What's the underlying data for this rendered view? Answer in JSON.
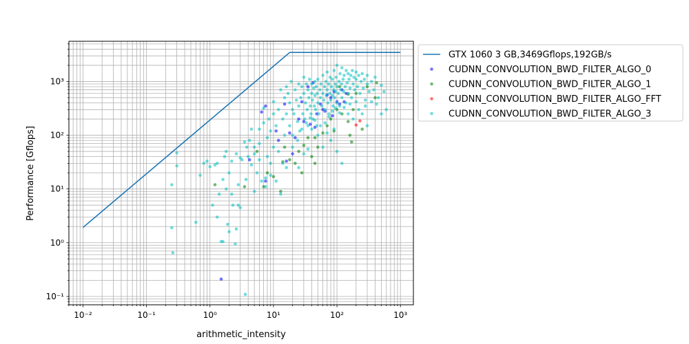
{
  "chart_data": {
    "type": "scatter",
    "title": "",
    "xlabel": "arithmetic_intensity",
    "ylabel": "Performance [Gflops]",
    "xscale": "log",
    "yscale": "log",
    "xlim": [
      0.006,
      1600
    ],
    "ylim": [
      0.07,
      5600
    ],
    "grid": true,
    "legend_position": "outside-right-top",
    "xticks": [
      {
        "value": 0.01,
        "label": "10⁻²"
      },
      {
        "value": 0.1,
        "label": "10⁻¹"
      },
      {
        "value": 1,
        "label": "10⁰"
      },
      {
        "value": 10,
        "label": "10¹"
      },
      {
        "value": 100,
        "label": "10²"
      },
      {
        "value": 1000,
        "label": "10³"
      }
    ],
    "yticks": [
      {
        "value": 0.1,
        "label": "10⁻¹"
      },
      {
        "value": 1,
        "label": "10⁰"
      },
      {
        "value": 10,
        "label": "10¹"
      },
      {
        "value": 100,
        "label": "10²"
      },
      {
        "value": 1000,
        "label": "10³"
      }
    ],
    "roofline": {
      "name": "GTX 1060 3 GB,3469Gflops,192GB/s",
      "color": "#1f77b4",
      "peak_gflops": 3469,
      "bandwidth_gbs": 192,
      "x": [
        0.01,
        18.07,
        1000
      ],
      "y": [
        1.92,
        3469,
        3469
      ]
    },
    "series": [
      {
        "name": "CUDNN_CONVOLUTION_BWD_FILTER_ALGO_0",
        "color": "#0000ff",
        "points": [
          [
            1.5,
            0.21
          ],
          [
            6.5,
            270
          ],
          [
            7.5,
            350
          ],
          [
            7.5,
            14
          ],
          [
            4.2,
            35
          ],
          [
            12,
            80
          ],
          [
            15,
            380
          ],
          [
            18,
            110
          ],
          [
            22,
            90
          ],
          [
            28,
            420
          ],
          [
            35,
            800
          ],
          [
            42,
            950
          ],
          [
            48,
            250
          ],
          [
            55,
            380
          ],
          [
            60,
            300
          ],
          [
            70,
            560
          ],
          [
            80,
            500
          ],
          [
            90,
            650
          ],
          [
            100,
            420
          ],
          [
            110,
            380
          ],
          [
            120,
            700
          ],
          [
            140,
            600
          ],
          [
            25,
            200
          ],
          [
            30,
            180
          ],
          [
            20,
            45
          ],
          [
            16,
            33
          ],
          [
            11,
            120
          ],
          [
            38,
            160
          ],
          [
            45,
            140
          ],
          [
            65,
            280
          ],
          [
            85,
            230
          ],
          [
            130,
            420
          ]
        ]
      },
      {
        "name": "CUDNN_CONVOLUTION_BWD_FILTER_ALGO_1",
        "color": "#008000",
        "points": [
          [
            1.2,
            12
          ],
          [
            3.5,
            11
          ],
          [
            5.5,
            50
          ],
          [
            7,
            11
          ],
          [
            8,
            20
          ],
          [
            10,
            17
          ],
          [
            13,
            9
          ],
          [
            15,
            60
          ],
          [
            18,
            35
          ],
          [
            22,
            30
          ],
          [
            25,
            50
          ],
          [
            28,
            20
          ],
          [
            30,
            65
          ],
          [
            35,
            90
          ],
          [
            40,
            40
          ],
          [
            45,
            90
          ],
          [
            50,
            60
          ],
          [
            60,
            110
          ],
          [
            70,
            150
          ],
          [
            80,
            200
          ],
          [
            90,
            120
          ],
          [
            100,
            300
          ],
          [
            120,
            250
          ],
          [
            150,
            180
          ],
          [
            160,
            100
          ],
          [
            170,
            75
          ],
          [
            180,
            300
          ],
          [
            200,
            600
          ],
          [
            250,
            130
          ],
          [
            300,
            800
          ],
          [
            400,
            500
          ],
          [
            420,
            950
          ],
          [
            110,
            800
          ],
          [
            150,
            580
          ],
          [
            45,
            30
          ],
          [
            14,
            32
          ]
        ]
      },
      {
        "name": "CUDNN_CONVOLUTION_BWD_FILTER_ALGO_FFT",
        "color": "#ff0000",
        "points": [
          [
            230,
            185
          ],
          [
            200,
            155
          ]
        ]
      },
      {
        "name": "CUDNN_CONVOLUTION_BWD_FILTER_ALGO_3",
        "color": "#00bfbf",
        "points": [
          [
            0.25,
            1.9
          ],
          [
            0.26,
            0.65
          ],
          [
            0.25,
            12
          ],
          [
            0.3,
            27
          ],
          [
            0.3,
            47
          ],
          [
            0.6,
            2.4
          ],
          [
            0.7,
            18
          ],
          [
            0.8,
            30
          ],
          [
            0.9,
            33
          ],
          [
            1.0,
            26
          ],
          [
            1.1,
            5
          ],
          [
            1.2,
            28
          ],
          [
            1.3,
            3
          ],
          [
            1.4,
            8
          ],
          [
            1.5,
            1.05
          ],
          [
            1.6,
            1.05
          ],
          [
            1.6,
            15
          ],
          [
            1.7,
            40
          ],
          [
            1.8,
            50
          ],
          [
            1.9,
            2.2
          ],
          [
            2.0,
            1.6
          ],
          [
            2.2,
            8
          ],
          [
            2.3,
            5
          ],
          [
            2.5,
            0.95
          ],
          [
            2.6,
            1.8
          ],
          [
            2.8,
            5
          ],
          [
            2.8,
            12
          ],
          [
            3.0,
            4.5
          ],
          [
            3.2,
            35
          ],
          [
            3.5,
            75
          ],
          [
            3.6,
            0.11
          ],
          [
            3.7,
            15
          ],
          [
            4.0,
            40
          ],
          [
            4.5,
            28
          ],
          [
            4.5,
            130
          ],
          [
            5.0,
            9
          ],
          [
            5.0,
            60
          ],
          [
            5.5,
            20
          ],
          [
            6.0,
            70
          ],
          [
            6.0,
            130
          ],
          [
            6.5,
            14
          ],
          [
            7.0,
            170
          ],
          [
            7.0,
            320
          ],
          [
            7.5,
            16
          ],
          [
            8.0,
            40
          ],
          [
            8.0,
            90
          ],
          [
            8.5,
            200
          ],
          [
            9.0,
            120
          ],
          [
            9.0,
            30
          ],
          [
            10,
            60
          ],
          [
            10,
            250
          ],
          [
            10,
            420
          ],
          [
            11,
            150
          ],
          [
            12,
            50
          ],
          [
            12,
            300
          ],
          [
            13,
            700
          ],
          [
            14,
            200
          ],
          [
            14,
            30
          ],
          [
            15,
            100
          ],
          [
            15,
            500
          ],
          [
            16,
            250
          ],
          [
            16,
            800
          ],
          [
            17,
            600
          ],
          [
            18,
            150
          ],
          [
            18,
            400
          ],
          [
            19,
            1000
          ],
          [
            20,
            300
          ],
          [
            20,
            60
          ],
          [
            21,
            250
          ],
          [
            22,
            700
          ],
          [
            23,
            450
          ],
          [
            24,
            180
          ],
          [
            25,
            350
          ],
          [
            25,
            900
          ],
          [
            26,
            120
          ],
          [
            27,
            500
          ],
          [
            28,
            800
          ],
          [
            29,
            250
          ],
          [
            30,
            600
          ],
          [
            30,
            1200
          ],
          [
            31,
            200
          ],
          [
            32,
            400
          ],
          [
            33,
            900
          ],
          [
            34,
            300
          ],
          [
            35,
            700
          ],
          [
            35,
            150
          ],
          [
            36,
            500
          ],
          [
            37,
            1100
          ],
          [
            38,
            350
          ],
          [
            39,
            250
          ],
          [
            40,
            600
          ],
          [
            40,
            900
          ],
          [
            41,
            450
          ],
          [
            42,
            200
          ],
          [
            43,
            750
          ],
          [
            44,
            350
          ],
          [
            45,
            550
          ],
          [
            45,
            1000
          ],
          [
            46,
            300
          ],
          [
            47,
            800
          ],
          [
            48,
            150
          ],
          [
            49,
            600
          ],
          [
            50,
            400
          ],
          [
            50,
            1100
          ],
          [
            52,
            250
          ],
          [
            54,
            700
          ],
          [
            55,
            500
          ],
          [
            56,
            900
          ],
          [
            58,
            350
          ],
          [
            60,
            600
          ],
          [
            60,
            1300
          ],
          [
            62,
            450
          ],
          [
            64,
            800
          ],
          [
            65,
            300
          ],
          [
            67,
            1000
          ],
          [
            68,
            550
          ],
          [
            70,
            700
          ],
          [
            70,
            1500
          ],
          [
            72,
            400
          ],
          [
            74,
            900
          ],
          [
            75,
            250
          ],
          [
            77,
            600
          ],
          [
            78,
            1200
          ],
          [
            80,
            450
          ],
          [
            82,
            800
          ],
          [
            84,
            1100
          ],
          [
            85,
            550
          ],
          [
            87,
            350
          ],
          [
            89,
            700
          ],
          [
            90,
            1600
          ],
          [
            92,
            500
          ],
          [
            94,
            900
          ],
          [
            95,
            650
          ],
          [
            97,
            1200
          ],
          [
            100,
            400
          ],
          [
            100,
            800
          ],
          [
            100,
            2000
          ],
          [
            105,
            600
          ],
          [
            108,
            1000
          ],
          [
            110,
            350
          ],
          [
            112,
            1400
          ],
          [
            115,
            700
          ],
          [
            118,
            900
          ],
          [
            120,
            500
          ],
          [
            120,
            1800
          ],
          [
            125,
            1100
          ],
          [
            128,
            650
          ],
          [
            130,
            1300
          ],
          [
            135,
            800
          ],
          [
            138,
            400
          ],
          [
            140,
            1600
          ],
          [
            145,
            950
          ],
          [
            150,
            600
          ],
          [
            150,
            1400
          ],
          [
            155,
            1100
          ],
          [
            160,
            750
          ],
          [
            165,
            1300
          ],
          [
            170,
            500
          ],
          [
            175,
            1600
          ],
          [
            180,
            900
          ],
          [
            185,
            1200
          ],
          [
            190,
            700
          ],
          [
            200,
            1100
          ],
          [
            200,
            1500
          ],
          [
            210,
            800
          ],
          [
            220,
            1300
          ],
          [
            230,
            600
          ],
          [
            240,
            1000
          ],
          [
            250,
            1400
          ],
          [
            260,
            750
          ],
          [
            270,
            1100
          ],
          [
            280,
            450
          ],
          [
            300,
            900
          ],
          [
            300,
            1300
          ],
          [
            320,
            650
          ],
          [
            350,
            1000
          ],
          [
            380,
            700
          ],
          [
            400,
            1200
          ],
          [
            450,
            500
          ],
          [
            500,
            850
          ],
          [
            550,
            650
          ],
          [
            600,
            300
          ],
          [
            120,
            30
          ],
          [
            100,
            50
          ],
          [
            80,
            80
          ],
          [
            60,
            60
          ],
          [
            50,
            100
          ],
          [
            40,
            130
          ],
          [
            35,
            55
          ],
          [
            25,
            25
          ],
          [
            30,
            45
          ],
          [
            45,
            190
          ],
          [
            70,
            110
          ],
          [
            90,
            130
          ],
          [
            150,
            250
          ],
          [
            180,
            200
          ],
          [
            250,
            250
          ],
          [
            300,
            150
          ],
          [
            13,
            8
          ],
          [
            11,
            14
          ],
          [
            9,
            18
          ],
          [
            7.5,
            11
          ],
          [
            16,
            25
          ],
          [
            20,
            100
          ],
          [
            24,
            80
          ],
          [
            28,
            130
          ],
          [
            33,
            170
          ],
          [
            38,
            210
          ],
          [
            55,
            150
          ],
          [
            65,
            170
          ],
          [
            75,
            220
          ],
          [
            85,
            280
          ],
          [
            95,
            320
          ],
          [
            110,
            260
          ],
          [
            130,
            330
          ],
          [
            160,
            380
          ],
          [
            200,
            420
          ],
          [
            220,
            300
          ],
          [
            280,
            350
          ],
          [
            350,
            420
          ],
          [
            420,
            380
          ],
          [
            500,
            250
          ],
          [
            5,
            45
          ],
          [
            6,
            35
          ],
          [
            4.2,
            80
          ],
          [
            3,
            38
          ],
          [
            3.8,
            60
          ],
          [
            2.2,
            33
          ],
          [
            2.6,
            45
          ],
          [
            1.3,
            30
          ],
          [
            2,
            20
          ],
          [
            1.8,
            10
          ]
        ]
      }
    ]
  }
}
